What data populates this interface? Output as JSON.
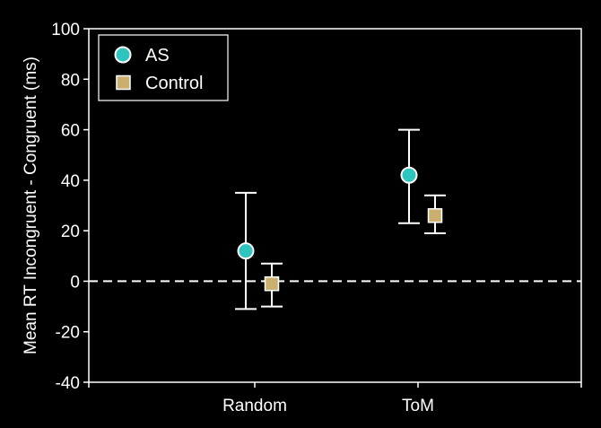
{
  "chart_data": {
    "type": "scatter",
    "categories": [
      "Random",
      "ToM"
    ],
    "ylabel": "Mean RT Incongruent - Congruent (ms)",
    "xlabel": "",
    "ylim": [
      -40,
      100
    ],
    "yticks": [
      -40,
      -20,
      0,
      20,
      40,
      60,
      80,
      100
    ],
    "reference_line": 0,
    "legend_position": "top-left",
    "grid": false,
    "series": [
      {
        "name": "AS",
        "marker": "circle",
        "color": "#2ec4c0",
        "values": [
          12,
          42
        ],
        "error_low": [
          -11,
          23
        ],
        "error_high": [
          35,
          60
        ]
      },
      {
        "name": "Control",
        "marker": "square",
        "color": "#c9b06e",
        "values": [
          -1,
          26
        ],
        "error_low": [
          -10,
          19
        ],
        "error_high": [
          7,
          34
        ]
      }
    ],
    "colors": {
      "background": "#000000",
      "axis": "#ffffff",
      "errorbar": "#ffffff"
    }
  }
}
